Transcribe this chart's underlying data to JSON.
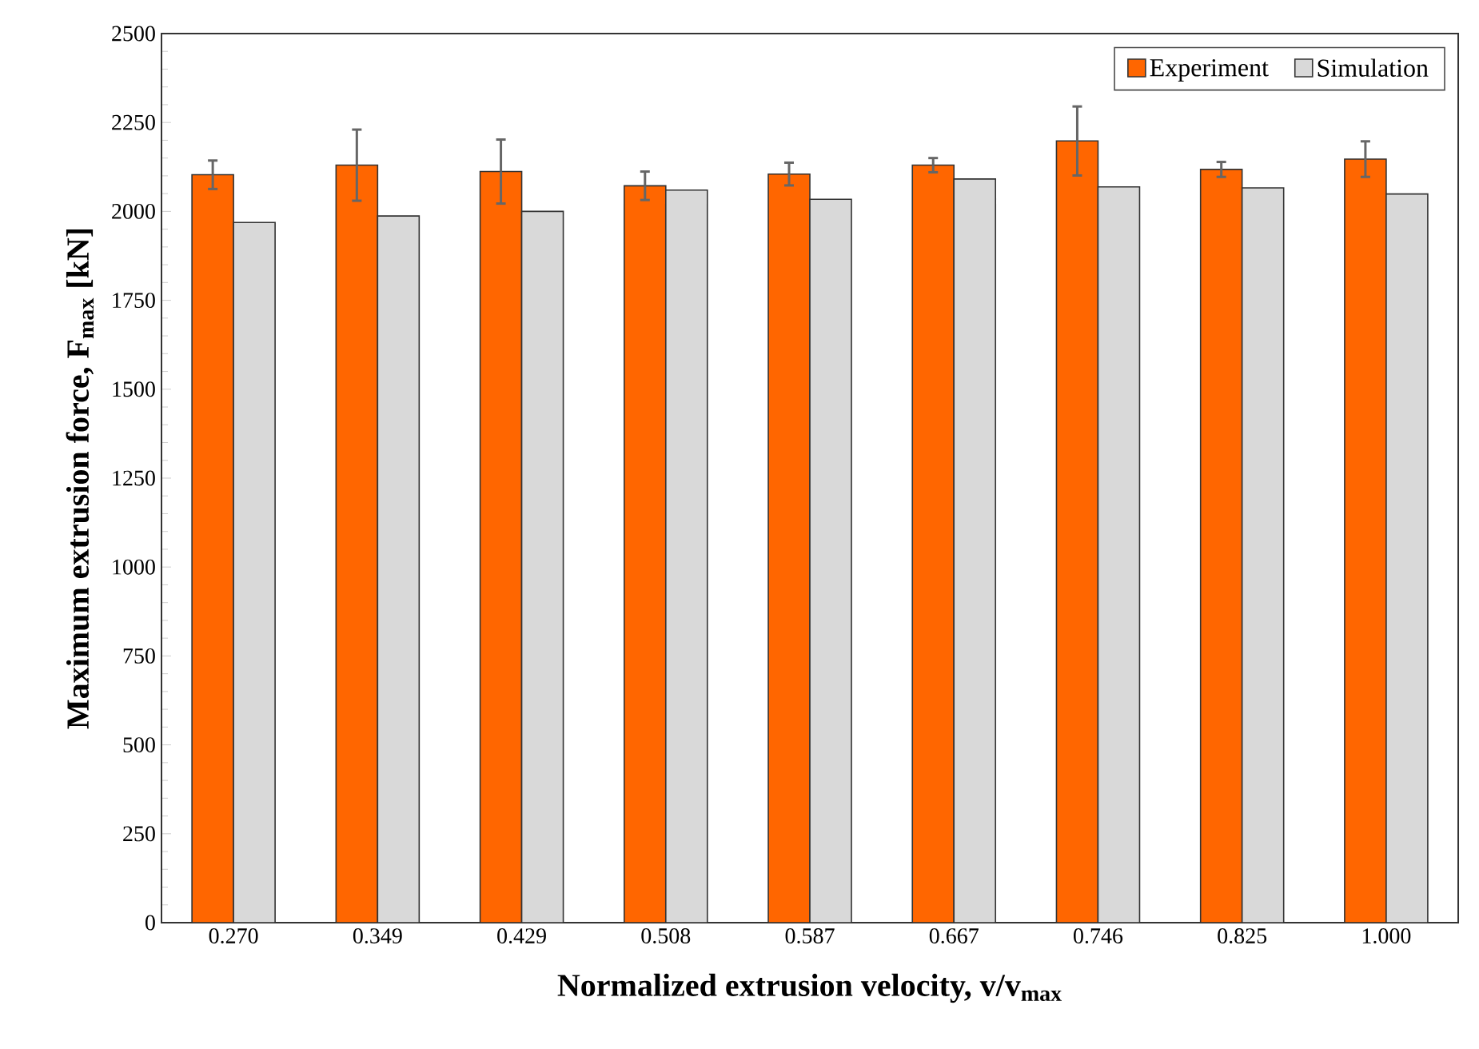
{
  "chart_data": {
    "type": "bar",
    "xlabel": "Normalized extrusion velocity, v/v$_{max}$",
    "ylabel": "Maximum extrusion force, F$_{max}$ [kN]",
    "categories": [
      "0.270",
      "0.349",
      "0.429",
      "0.508",
      "0.587",
      "0.667",
      "0.746",
      "0.825",
      "1.000"
    ],
    "series": [
      {
        "name": "Experiment",
        "color": "#ff6600",
        "values": [
          2103,
          2130,
          2112,
          2072,
          2105,
          2130,
          2198,
          2118,
          2147
        ],
        "errors": [
          40,
          100,
          90,
          40,
          32,
          20,
          97,
          21,
          50
        ]
      },
      {
        "name": "Simulation",
        "color": "#d9d9d9",
        "values": [
          1969,
          1987,
          2000,
          2060,
          2034,
          2091,
          2069,
          2066,
          2049
        ]
      }
    ],
    "ylim": [
      0,
      2500
    ],
    "yticks": [
      0,
      250,
      500,
      750,
      1000,
      1250,
      1500,
      1750,
      2000,
      2250,
      2500
    ],
    "grid": false,
    "legend": "top right"
  }
}
